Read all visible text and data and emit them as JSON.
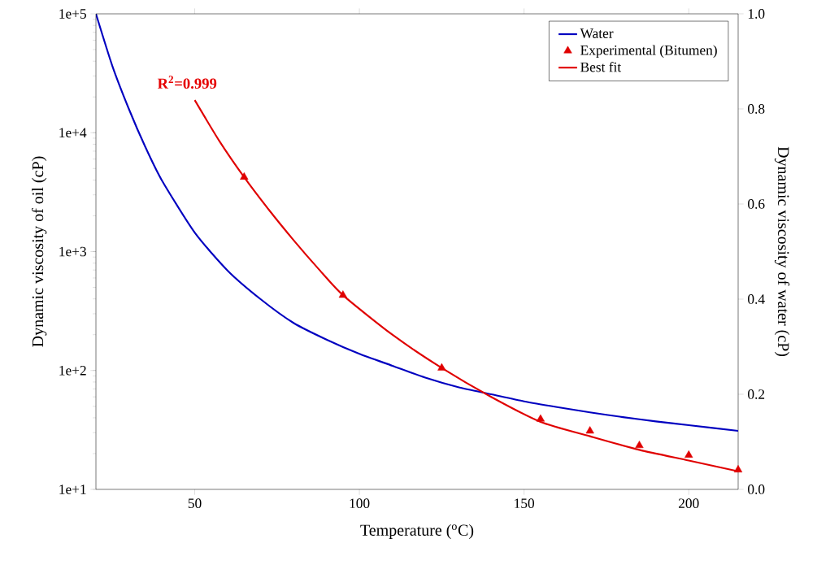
{
  "chart_data": {
    "type": "line",
    "xlabel": "Temperature ($^{o}$C)",
    "ylabel": "Dynamic viscosity of oil (cP)",
    "y2label": "Dynamic viscosity of water (cP)",
    "xlim": [
      20,
      215
    ],
    "xticks": [
      50,
      100,
      150,
      200
    ],
    "ylim": [
      10,
      100000
    ],
    "yticks": [
      {
        "value": 10,
        "label": "1e+1"
      },
      {
        "value": 100,
        "label": "1e+2"
      },
      {
        "value": 1000,
        "label": "1e+3"
      },
      {
        "value": 10000,
        "label": "1e+4"
      },
      {
        "value": 100000,
        "label": "1e+5"
      }
    ],
    "y2lim": [
      0,
      1
    ],
    "y2ticks": [
      {
        "value": 0,
        "label": "0.0"
      },
      {
        "value": 0.2,
        "label": "0.2"
      },
      {
        "value": 0.4,
        "label": "0.4"
      },
      {
        "value": 0.6,
        "label": "0.6"
      },
      {
        "value": 0.8,
        "label": "0.8"
      },
      {
        "value": 1,
        "label": "1.0"
      }
    ],
    "log": "y",
    "legend": "top right",
    "annotations": [
      {
        "text": "R$^{2}$=0.999",
        "x": 50,
        "y": 18800
      }
    ],
    "series": [
      {
        "name": "Water",
        "axis": "y2",
        "color": "#0000c0",
        "marker": "none",
        "x": [
          20,
          25,
          30,
          35,
          40,
          50,
          60,
          70,
          80,
          90,
          100,
          110,
          120,
          130,
          140,
          150,
          160,
          170,
          180,
          190,
          200,
          215
        ],
        "values": [
          1.0,
          0.89,
          0.8,
          0.72,
          0.65,
          0.54,
          0.46,
          0.4,
          0.35,
          0.315,
          0.285,
          0.26,
          0.235,
          0.215,
          0.2,
          0.185,
          0.173,
          0.162,
          0.152,
          0.143,
          0.135,
          0.123
        ]
      },
      {
        "name": "Experimental (Bitumen)",
        "type": "scatter",
        "color": "#e00000",
        "marker": "triangle",
        "x": [
          65,
          95,
          125,
          155,
          170,
          185,
          200,
          215
        ],
        "values": [
          4230,
          430,
          105,
          39,
          31,
          23.4,
          19.4,
          14.6
        ]
      },
      {
        "name": "Best fit",
        "color": "#e00000",
        "marker": "none",
        "x": [
          50,
          57.5,
          65,
          72.5,
          80,
          87.5,
          95,
          110,
          125,
          140,
          155,
          170,
          185,
          200,
          215
        ],
        "values": [
          18800,
          8500,
          4230,
          2250,
          1250,
          720,
          430,
          200,
          105,
          60,
          37,
          28,
          21.5,
          17.5,
          14.2
        ]
      }
    ]
  }
}
